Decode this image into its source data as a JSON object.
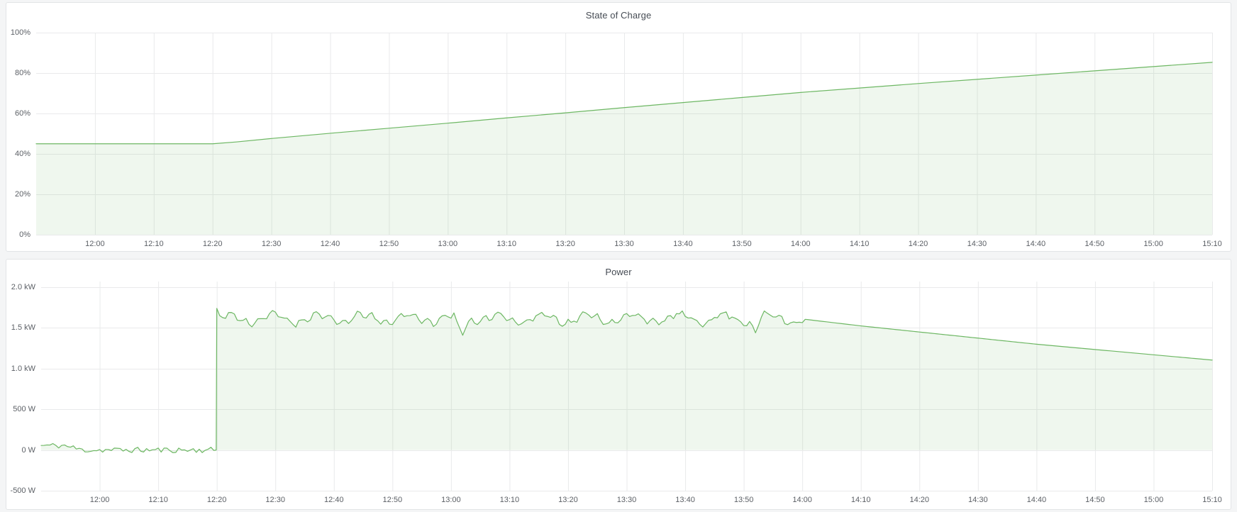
{
  "page": {
    "background": "#f4f5f6",
    "panel_background": "#ffffff",
    "panel_border": "#e2e4e6",
    "grid_color": "#e9eaeb",
    "accent_green": "#6db763",
    "fill_green_opacity": 0.11,
    "title_color": "#464c54",
    "tick_color": "#5c6066"
  },
  "panels": [
    {
      "title": "State of Charge"
    },
    {
      "title": "Power"
    }
  ],
  "chart_data": [
    {
      "type": "area",
      "title": "State of Charge",
      "xlabel": "",
      "ylabel": "",
      "legend": "none",
      "grid": true,
      "x_range": [
        "11:50",
        "15:10"
      ],
      "x_ticks": [
        {
          "t": 720,
          "label": "12:00"
        },
        {
          "t": 730,
          "label": "12:10"
        },
        {
          "t": 740,
          "label": "12:20"
        },
        {
          "t": 750,
          "label": "12:30"
        },
        {
          "t": 760,
          "label": "12:40"
        },
        {
          "t": 770,
          "label": "12:50"
        },
        {
          "t": 780,
          "label": "13:00"
        },
        {
          "t": 790,
          "label": "13:10"
        },
        {
          "t": 800,
          "label": "13:20"
        },
        {
          "t": 810,
          "label": "13:30"
        },
        {
          "t": 820,
          "label": "13:40"
        },
        {
          "t": 830,
          "label": "13:50"
        },
        {
          "t": 840,
          "label": "14:00"
        },
        {
          "t": 850,
          "label": "14:10"
        },
        {
          "t": 860,
          "label": "14:20"
        },
        {
          "t": 870,
          "label": "14:30"
        },
        {
          "t": 880,
          "label": "14:40"
        },
        {
          "t": 890,
          "label": "14:50"
        },
        {
          "t": 900,
          "label": "15:00"
        },
        {
          "t": 910,
          "label": "15:10"
        }
      ],
      "ylim": [
        0,
        100
      ],
      "y_ticks": [
        {
          "v": 0,
          "label": "0%"
        },
        {
          "v": 20,
          "label": "20%"
        },
        {
          "v": 40,
          "label": "40%"
        },
        {
          "v": 60,
          "label": "60%"
        },
        {
          "v": 80,
          "label": "80%"
        },
        {
          "v": 100,
          "label": "100%"
        }
      ],
      "series": [
        {
          "name": "State of Charge",
          "unit": "%",
          "color": "#6db763",
          "points": [
            [
              710,
              45.0
            ],
            [
              740,
              45.0
            ],
            [
              744,
              45.9
            ],
            [
              750,
              47.6
            ],
            [
              760,
              50.2
            ],
            [
              770,
              52.7
            ],
            [
              780,
              55.2
            ],
            [
              790,
              57.8
            ],
            [
              800,
              60.3
            ],
            [
              810,
              62.9
            ],
            [
              820,
              65.4
            ],
            [
              830,
              67.9
            ],
            [
              840,
              70.4
            ],
            [
              850,
              72.6
            ],
            [
              860,
              74.8
            ],
            [
              870,
              76.9
            ],
            [
              880,
              79.0
            ],
            [
              890,
              81.1
            ],
            [
              900,
              83.2
            ],
            [
              910,
              85.3
            ]
          ]
        }
      ]
    },
    {
      "type": "area",
      "title": "Power",
      "xlabel": "",
      "ylabel": "",
      "legend": "none",
      "grid": true,
      "x_range": [
        "11:50",
        "15:10"
      ],
      "x_ticks": [
        {
          "t": 720,
          "label": "12:00"
        },
        {
          "t": 730,
          "label": "12:10"
        },
        {
          "t": 740,
          "label": "12:20"
        },
        {
          "t": 750,
          "label": "12:30"
        },
        {
          "t": 760,
          "label": "12:40"
        },
        {
          "t": 770,
          "label": "12:50"
        },
        {
          "t": 780,
          "label": "13:00"
        },
        {
          "t": 790,
          "label": "13:10"
        },
        {
          "t": 800,
          "label": "13:20"
        },
        {
          "t": 810,
          "label": "13:30"
        },
        {
          "t": 820,
          "label": "13:40"
        },
        {
          "t": 830,
          "label": "13:50"
        },
        {
          "t": 840,
          "label": "14:00"
        },
        {
          "t": 850,
          "label": "14:10"
        },
        {
          "t": 860,
          "label": "14:20"
        },
        {
          "t": 870,
          "label": "14:30"
        },
        {
          "t": 880,
          "label": "14:40"
        },
        {
          "t": 890,
          "label": "14:50"
        },
        {
          "t": 900,
          "label": "15:00"
        },
        {
          "t": 910,
          "label": "15:10"
        }
      ],
      "ylim": [
        -0.5,
        2.07
      ],
      "y_unit": "kW",
      "y_ticks": [
        {
          "v": -0.5,
          "label": "-500 W"
        },
        {
          "v": 0,
          "label": "0 W"
        },
        {
          "v": 0.5,
          "label": "500 W"
        },
        {
          "v": 1.0,
          "label": "1.0 kW"
        },
        {
          "v": 1.5,
          "label": "1.5 kW"
        },
        {
          "v": 2.0,
          "label": "2.0 kW"
        }
      ],
      "series": [
        {
          "name": "Power",
          "unit": "kW",
          "color": "#6db763",
          "mean_keyframes": [
            [
              710,
              0.05
            ],
            [
              714,
              0.0
            ],
            [
              739.9,
              0.0
            ],
            [
              740,
              1.74
            ],
            [
              742,
              1.62
            ],
            [
              782,
              1.41
            ],
            [
              800,
              1.62
            ],
            [
              832,
              1.44
            ],
            [
              840,
              1.61
            ],
            [
              850,
              1.525
            ],
            [
              860,
              1.45
            ],
            [
              870,
              1.375
            ],
            [
              880,
              1.3
            ],
            [
              890,
              1.235
            ],
            [
              900,
              1.17
            ],
            [
              910,
              1.105
            ]
          ],
          "generator": {
            "seed": 11,
            "step_min": 0.5,
            "range_min": [
              710,
              910
            ],
            "baseline": {
              "until": 740,
              "level": 0.055,
              "level_until": 714,
              "decay_min": 3,
              "noise": 0.07
            },
            "charge": {
              "until": 840,
              "mean": 1.615,
              "wave1": [
                0.055,
                7.7
              ],
              "wave2": [
                0.03,
                2.4
              ],
              "jitter": 0.05,
              "spike": [
                740,
                1.74
              ],
              "dips": [
                [
                  782,
                  1.41,
                  1.2
                ],
                [
                  832,
                  1.44,
                  1.0
                ]
              ]
            },
            "taper": [
              [
                840,
                1.61
              ],
              [
                850,
                1.525
              ],
              [
                860,
                1.45
              ],
              [
                870,
                1.375
              ],
              [
                880,
                1.3
              ],
              [
                890,
                1.235
              ],
              [
                900,
                1.17
              ],
              [
                910,
                1.105
              ]
            ]
          }
        }
      ]
    }
  ]
}
